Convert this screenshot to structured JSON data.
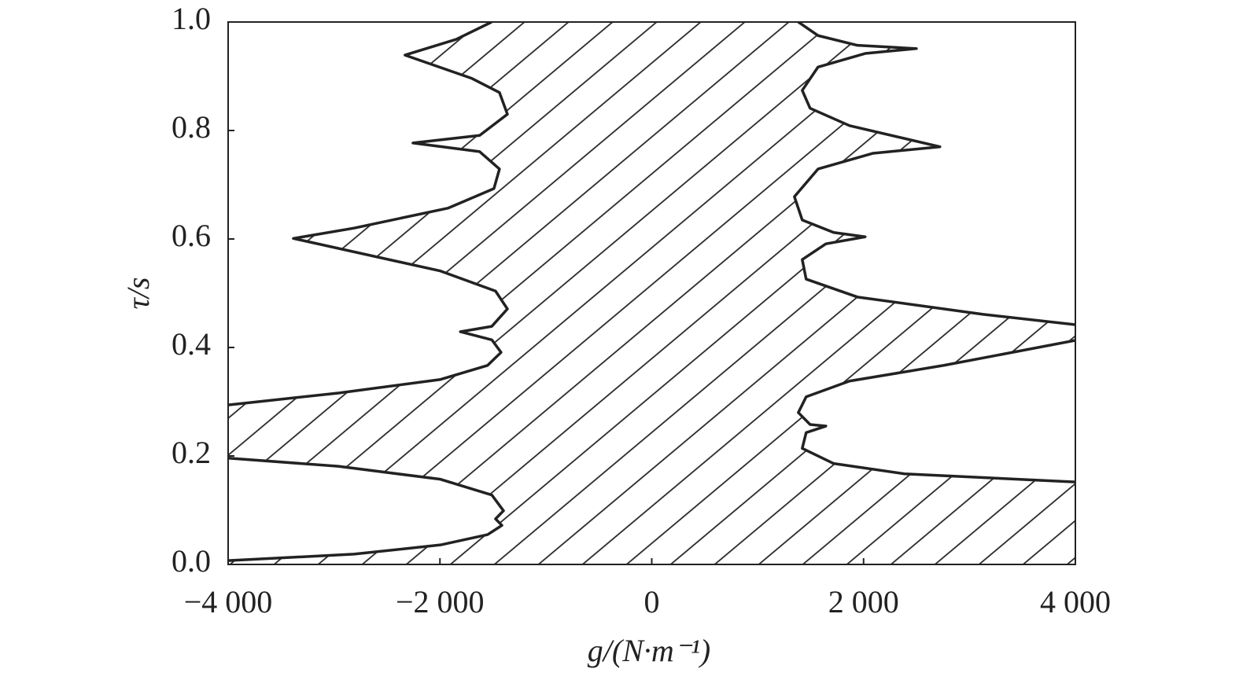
{
  "chart_data": {
    "type": "line",
    "xlabel": "g/(N·m⁻¹)",
    "ylabel": "τ/s",
    "xlim": [
      -4000,
      4000
    ],
    "ylim": [
      0,
      1
    ],
    "xticks": [
      {
        "value": -4000,
        "label": "−4 000"
      },
      {
        "value": -2000,
        "label": "−2 000"
      },
      0,
      {
        "value": 2000,
        "label": "2 000"
      },
      {
        "value": 4000,
        "label": "4 000"
      }
    ],
    "yticks": [
      {
        "value": 0,
        "label": "0.0"
      },
      {
        "value": 0.2,
        "label": "0.2"
      },
      {
        "value": 0.4,
        "label": "0.4"
      },
      {
        "value": 0.6,
        "label": "0.6"
      },
      {
        "value": 0.8,
        "label": "0.8"
      },
      {
        "value": 1,
        "label": "1.0"
      }
    ],
    "hatched": true,
    "series": [
      {
        "color": "#222222",
        "x": [
          -4000,
          -2812,
          -1995,
          -1550,
          -1415,
          -1475,
          -1400,
          -1510,
          -1995,
          -2960,
          -4000
        ],
        "values": [
          0.007,
          0.019,
          0.036,
          0.055,
          0.072,
          0.084,
          0.099,
          0.128,
          0.157,
          0.181,
          0.196
        ]
      },
      {
        "color": "#222222",
        "x": [
          -4000,
          -2960,
          -1995,
          -1550,
          -1423,
          -1510,
          -1807,
          -1510,
          -1363,
          -1475,
          -1995,
          -3384,
          -2812,
          -1921,
          -1490,
          -1438,
          -1625,
          -2255,
          -1625,
          -1363,
          -1438,
          -1698,
          -2330,
          -1847,
          -1512
        ],
        "values": [
          0.294,
          0.316,
          0.341,
          0.367,
          0.391,
          0.414,
          0.429,
          0.439,
          0.471,
          0.504,
          0.541,
          0.601,
          0.62,
          0.657,
          0.693,
          0.729,
          0.761,
          0.777,
          0.791,
          0.83,
          0.87,
          0.896,
          0.939,
          0.968,
          1.0
        ]
      },
      {
        "color": "#222222",
        "x": [
          1384,
          1570,
          1942,
          2499,
          2015,
          1570,
          1421,
          1495,
          1867,
          2721,
          2090,
          1570,
          1347,
          1421,
          1718,
          2015,
          1644,
          1421,
          1458,
          1942,
          3130,
          4000
        ],
        "values": [
          1.0,
          0.975,
          0.957,
          0.951,
          0.942,
          0.917,
          0.874,
          0.841,
          0.809,
          0.77,
          0.758,
          0.729,
          0.678,
          0.635,
          0.612,
          0.604,
          0.591,
          0.562,
          0.526,
          0.493,
          0.461,
          0.442
        ]
      },
      {
        "color": "#222222",
        "x": [
          4000,
          2758,
          1867,
          1458,
          1384,
          1495,
          1644,
          1458,
          1421,
          1718,
          2387,
          4000
        ],
        "values": [
          0.413,
          0.367,
          0.338,
          0.309,
          0.28,
          0.258,
          0.255,
          0.243,
          0.214,
          0.186,
          0.167,
          0.152
        ]
      }
    ]
  }
}
